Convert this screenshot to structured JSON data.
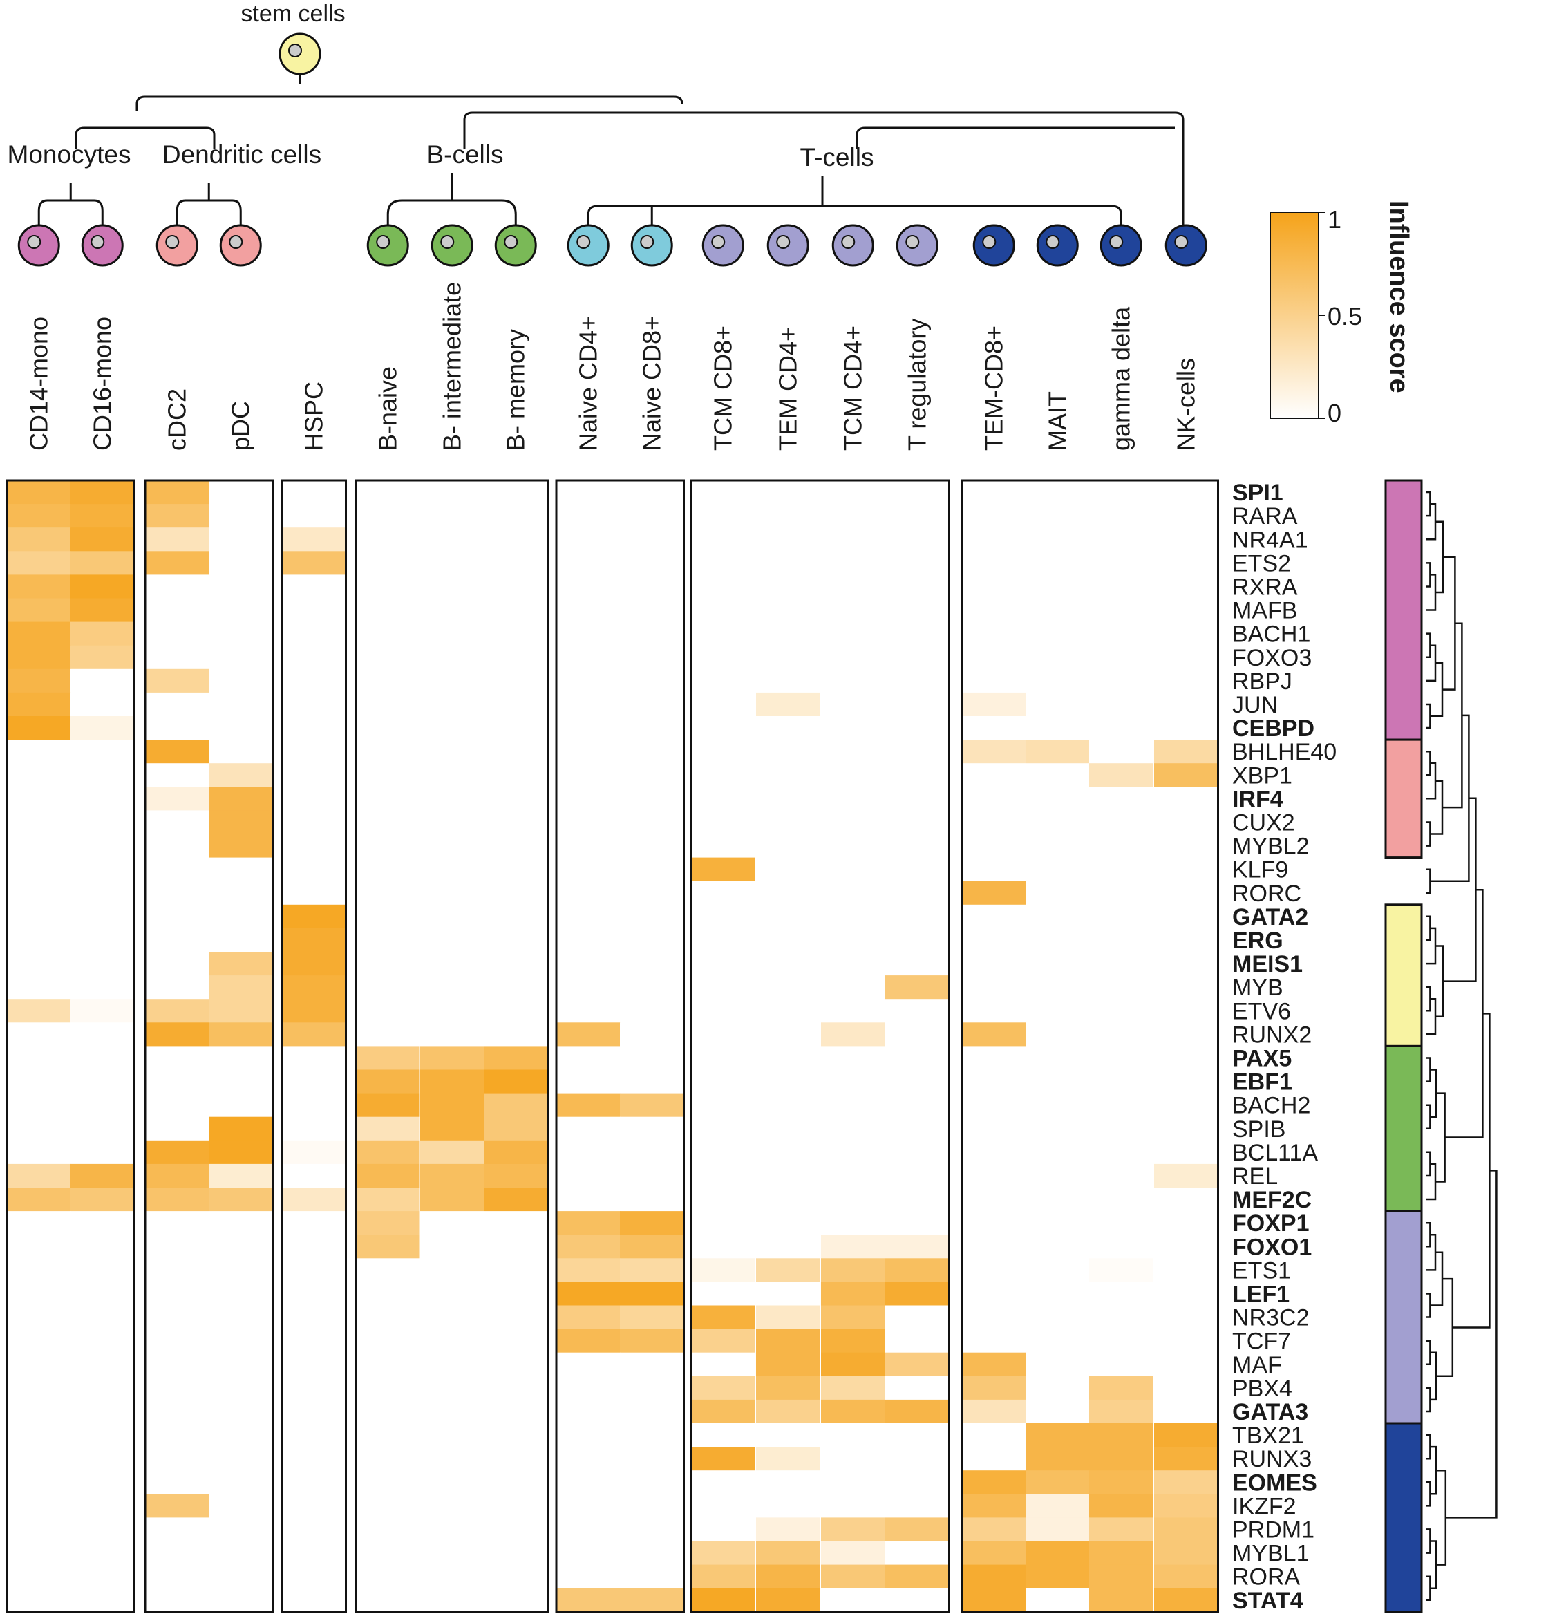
{
  "chart_data": {
    "type": "heatmap",
    "root_label": "stem cells",
    "group_labels": [
      "Monocytes",
      "Dendritic cells",
      "B-cells",
      "T-cells"
    ],
    "columns": [
      "CD14-mono",
      "CD16-mono",
      "cDC2",
      "pDC",
      "HSPC",
      "B-naive",
      "B- intermediate",
      "B- memory",
      "Naive CD4+",
      "Naive CD8+",
      "TCM CD8+",
      "TEM CD4+",
      "TCM  CD4+",
      "T regulatory",
      "TEM-CD8+",
      "MAIT",
      "gamma delta",
      "NK-cells"
    ],
    "column_colors": [
      "#cc76b4",
      "#cc76b4",
      "#f2a0a0",
      "#f2a0a0",
      "#f8f3a2",
      "#7ab957",
      "#7ab957",
      "#7ab957",
      "#7fcbdc",
      "#7fcbdc",
      "#a29fd0",
      "#a29fd0",
      "#a29fd0",
      "#a29fd0",
      "#20449a",
      "#20449a",
      "#20449a",
      "#20449a"
    ],
    "rows": [
      "SPI1",
      "RARA",
      "NR4A1",
      "ETS2",
      "RXRA",
      "MAFB",
      "BACH1",
      "FOXO3",
      "RBPJ",
      "JUN",
      "CEBPD",
      "BHLHE40",
      "XBP1",
      "IRF4",
      "CUX2",
      "MYBL2",
      "KLF9",
      "RORC",
      "GATA2",
      "ERG",
      "MEIS1",
      "MYB",
      "ETV6",
      "RUNX2",
      "PAX5",
      "EBF1",
      "BACH2",
      "SPIB",
      "BCL11A",
      "REL",
      "MEF2C",
      "FOXP1",
      "FOXO1",
      "ETS1",
      "LEF1",
      "NR3C2",
      "TCF7",
      "MAF",
      "PBX4",
      "GATA3",
      "TBX21",
      "RUNX3",
      "EOMES",
      "IKZF2",
      "PRDM1",
      "MYBL1",
      "RORA",
      "STAT4"
    ],
    "bold_rows": [
      "SPI1",
      "CEBPD",
      "IRF4",
      "GATA2",
      "ERG",
      "MEIS1",
      "PAX5",
      "EBF1",
      "MEF2C",
      "FOXP1",
      "FOXO1",
      "LEF1",
      "GATA3",
      "EOMES",
      "STAT4"
    ],
    "row_module_colors": [
      "#cc76b4",
      "#f2a0a0",
      "#f8f3a2",
      "#7ab957",
      "#a29fd0",
      "#20449a"
    ],
    "colorbar": {
      "title": "Influence score",
      "ticks": [
        "0",
        "0.5",
        "1"
      ],
      "range": [
        0,
        1
      ],
      "low_color": "#ffffff",
      "high_color": "#f5a31a"
    },
    "values": [
      [
        0.8,
        0.9,
        0.75,
        0,
        0,
        0,
        0,
        0,
        0,
        0,
        0,
        0,
        0,
        0,
        0,
        0,
        0,
        0
      ],
      [
        0.75,
        0.85,
        0.65,
        0,
        0,
        0,
        0,
        0,
        0,
        0,
        0,
        0,
        0,
        0,
        0,
        0,
        0,
        0
      ],
      [
        0.6,
        0.9,
        0.3,
        0,
        0.25,
        0,
        0,
        0,
        0,
        0,
        0,
        0,
        0,
        0,
        0,
        0,
        0,
        0
      ],
      [
        0.5,
        0.6,
        0.75,
        0,
        0.65,
        0,
        0,
        0,
        0,
        0,
        0,
        0,
        0,
        0,
        0,
        0,
        0,
        0
      ],
      [
        0.75,
        0.95,
        0,
        0,
        0,
        0,
        0,
        0,
        0,
        0,
        0,
        0,
        0,
        0,
        0,
        0,
        0,
        0
      ],
      [
        0.7,
        0.9,
        0,
        0,
        0,
        0,
        0,
        0,
        0,
        0,
        0,
        0,
        0,
        0,
        0,
        0,
        0,
        0
      ],
      [
        0.85,
        0.55,
        0,
        0,
        0,
        0,
        0,
        0,
        0,
        0,
        0,
        0,
        0,
        0,
        0,
        0,
        0,
        0
      ],
      [
        0.85,
        0.5,
        0,
        0,
        0,
        0,
        0,
        0,
        0,
        0,
        0,
        0,
        0,
        0,
        0,
        0,
        0,
        0
      ],
      [
        0.8,
        0,
        0.45,
        0,
        0,
        0,
        0,
        0,
        0,
        0,
        0,
        0,
        0,
        0,
        0,
        0,
        0,
        0
      ],
      [
        0.85,
        0,
        0,
        0,
        0,
        0,
        0,
        0,
        0,
        0,
        0,
        0.2,
        0,
        0,
        0.15,
        0,
        0,
        0
      ],
      [
        0.95,
        0.12,
        0,
        0,
        0,
        0,
        0,
        0,
        0,
        0,
        0,
        0,
        0,
        0,
        0,
        0,
        0,
        0
      ],
      [
        0,
        0,
        0.9,
        0,
        0,
        0,
        0,
        0,
        0,
        0,
        0,
        0,
        0,
        0,
        0.3,
        0.35,
        0,
        0.4
      ],
      [
        0,
        0,
        0,
        0.3,
        0,
        0,
        0,
        0,
        0,
        0,
        0,
        0,
        0,
        0,
        0,
        0,
        0.3,
        0.7
      ],
      [
        0,
        0,
        0.15,
        0.8,
        0,
        0,
        0,
        0,
        0,
        0,
        0,
        0,
        0,
        0,
        0,
        0,
        0,
        0
      ],
      [
        0,
        0,
        0,
        0.8,
        0,
        0,
        0,
        0,
        0,
        0,
        0,
        0,
        0,
        0,
        0,
        0,
        0,
        0
      ],
      [
        0,
        0,
        0,
        0.8,
        0,
        0,
        0,
        0,
        0,
        0,
        0,
        0,
        0,
        0,
        0,
        0,
        0,
        0
      ],
      [
        0,
        0,
        0,
        0,
        0,
        0,
        0,
        0,
        0,
        0,
        0.85,
        0,
        0,
        0,
        0,
        0,
        0,
        0
      ],
      [
        0,
        0,
        0,
        0,
        0,
        0,
        0,
        0,
        0,
        0,
        0,
        0,
        0,
        0,
        0.8,
        0,
        0,
        0
      ],
      [
        0,
        0,
        0,
        0,
        0.95,
        0,
        0,
        0,
        0,
        0,
        0,
        0,
        0,
        0,
        0,
        0,
        0,
        0
      ],
      [
        0,
        0,
        0,
        0,
        0.9,
        0,
        0,
        0,
        0,
        0,
        0,
        0,
        0,
        0,
        0,
        0,
        0,
        0
      ],
      [
        0,
        0,
        0,
        0.55,
        0.9,
        0,
        0,
        0,
        0,
        0,
        0,
        0,
        0,
        0,
        0,
        0,
        0,
        0
      ],
      [
        0,
        0,
        0,
        0.45,
        0.85,
        0,
        0,
        0,
        0,
        0,
        0,
        0,
        0,
        0.6,
        0,
        0,
        0,
        0
      ],
      [
        0.35,
        0.05,
        0.5,
        0.45,
        0.85,
        0,
        0,
        0,
        0,
        0,
        0,
        0,
        0,
        0,
        0,
        0,
        0,
        0
      ],
      [
        0,
        0,
        0.9,
        0.7,
        0.7,
        0,
        0,
        0,
        0.7,
        0,
        0,
        0,
        0.25,
        0,
        0.7,
        0,
        0,
        0
      ],
      [
        0,
        0,
        0,
        0,
        0,
        0.55,
        0.65,
        0.75,
        0,
        0,
        0,
        0,
        0,
        0,
        0,
        0,
        0,
        0
      ],
      [
        0,
        0,
        0,
        0,
        0,
        0.8,
        0.85,
        0.95,
        0,
        0,
        0,
        0,
        0,
        0,
        0,
        0,
        0,
        0
      ],
      [
        0,
        0,
        0,
        0,
        0,
        0.9,
        0.85,
        0.6,
        0.75,
        0.6,
        0,
        0,
        0,
        0,
        0,
        0,
        0,
        0
      ],
      [
        0,
        0,
        0,
        0.95,
        0,
        0.3,
        0.85,
        0.6,
        0,
        0,
        0,
        0,
        0,
        0,
        0,
        0,
        0,
        0
      ],
      [
        0,
        0,
        0.9,
        0.95,
        0.05,
        0.65,
        0.4,
        0.8,
        0,
        0,
        0,
        0,
        0,
        0,
        0,
        0,
        0,
        0
      ],
      [
        0.4,
        0.8,
        0.75,
        0.2,
        0,
        0.75,
        0.7,
        0.75,
        0,
        0,
        0,
        0,
        0,
        0,
        0,
        0,
        0,
        0.2
      ],
      [
        0.65,
        0.6,
        0.65,
        0.6,
        0.25,
        0.45,
        0.7,
        0.9,
        0,
        0,
        0,
        0,
        0,
        0,
        0,
        0,
        0,
        0
      ],
      [
        0,
        0,
        0,
        0,
        0,
        0.55,
        0,
        0,
        0.7,
        0.85,
        0,
        0,
        0,
        0,
        0,
        0,
        0,
        0
      ],
      [
        0,
        0,
        0,
        0,
        0,
        0.6,
        0,
        0,
        0.6,
        0.7,
        0,
        0,
        0.15,
        0.15,
        0,
        0,
        0,
        0
      ],
      [
        0,
        0,
        0,
        0,
        0,
        0,
        0,
        0,
        0.45,
        0.4,
        0.1,
        0.4,
        0.6,
        0.7,
        0,
        0,
        0.03,
        0
      ],
      [
        0,
        0,
        0,
        0,
        0,
        0,
        0,
        0,
        0.95,
        0.95,
        0,
        0,
        0.75,
        0.9,
        0,
        0,
        0,
        0
      ],
      [
        0,
        0,
        0,
        0,
        0,
        0,
        0,
        0,
        0.55,
        0.45,
        0.85,
        0.25,
        0.65,
        0,
        0,
        0,
        0,
        0
      ],
      [
        0,
        0,
        0,
        0,
        0,
        0,
        0,
        0,
        0.75,
        0.7,
        0.5,
        0.8,
        0.85,
        0,
        0,
        0,
        0,
        0
      ],
      [
        0,
        0,
        0,
        0,
        0,
        0,
        0,
        0,
        0,
        0,
        0,
        0.8,
        0.9,
        0.55,
        0.75,
        0,
        0,
        0
      ],
      [
        0,
        0,
        0,
        0,
        0,
        0,
        0,
        0,
        0,
        0,
        0.45,
        0.7,
        0.4,
        0,
        0.6,
        0,
        0.55,
        0
      ],
      [
        0,
        0,
        0,
        0,
        0,
        0,
        0,
        0,
        0,
        0,
        0.7,
        0.5,
        0.75,
        0.8,
        0.3,
        0,
        0.5,
        0
      ],
      [
        0,
        0,
        0,
        0,
        0,
        0,
        0,
        0,
        0,
        0,
        0,
        0,
        0,
        0,
        0,
        0.8,
        0.8,
        0.9
      ],
      [
        0,
        0,
        0,
        0,
        0,
        0,
        0,
        0,
        0,
        0,
        0.9,
        0.2,
        0,
        0,
        0,
        0.8,
        0.8,
        0.85
      ],
      [
        0,
        0,
        0,
        0,
        0,
        0,
        0,
        0,
        0,
        0,
        0,
        0,
        0,
        0,
        0.85,
        0.7,
        0.75,
        0.5
      ],
      [
        0,
        0,
        0.6,
        0,
        0,
        0,
        0,
        0,
        0,
        0,
        0,
        0,
        0,
        0,
        0.75,
        0.15,
        0.8,
        0.55
      ],
      [
        0,
        0,
        0,
        0,
        0,
        0,
        0,
        0,
        0,
        0,
        0,
        0.15,
        0.5,
        0.6,
        0.5,
        0.15,
        0.5,
        0.6
      ],
      [
        0,
        0,
        0,
        0,
        0,
        0,
        0,
        0,
        0,
        0,
        0.45,
        0.6,
        0.15,
        0,
        0.7,
        0.85,
        0.75,
        0.6
      ],
      [
        0,
        0,
        0,
        0,
        0,
        0,
        0,
        0,
        0,
        0,
        0.6,
        0.8,
        0.6,
        0.7,
        0.9,
        0.85,
        0.75,
        0.65
      ],
      [
        0,
        0,
        0,
        0,
        0,
        0,
        0,
        0,
        0.6,
        0.6,
        0.95,
        0.9,
        0,
        0,
        0.9,
        0,
        0.75,
        0.85
      ]
    ]
  }
}
